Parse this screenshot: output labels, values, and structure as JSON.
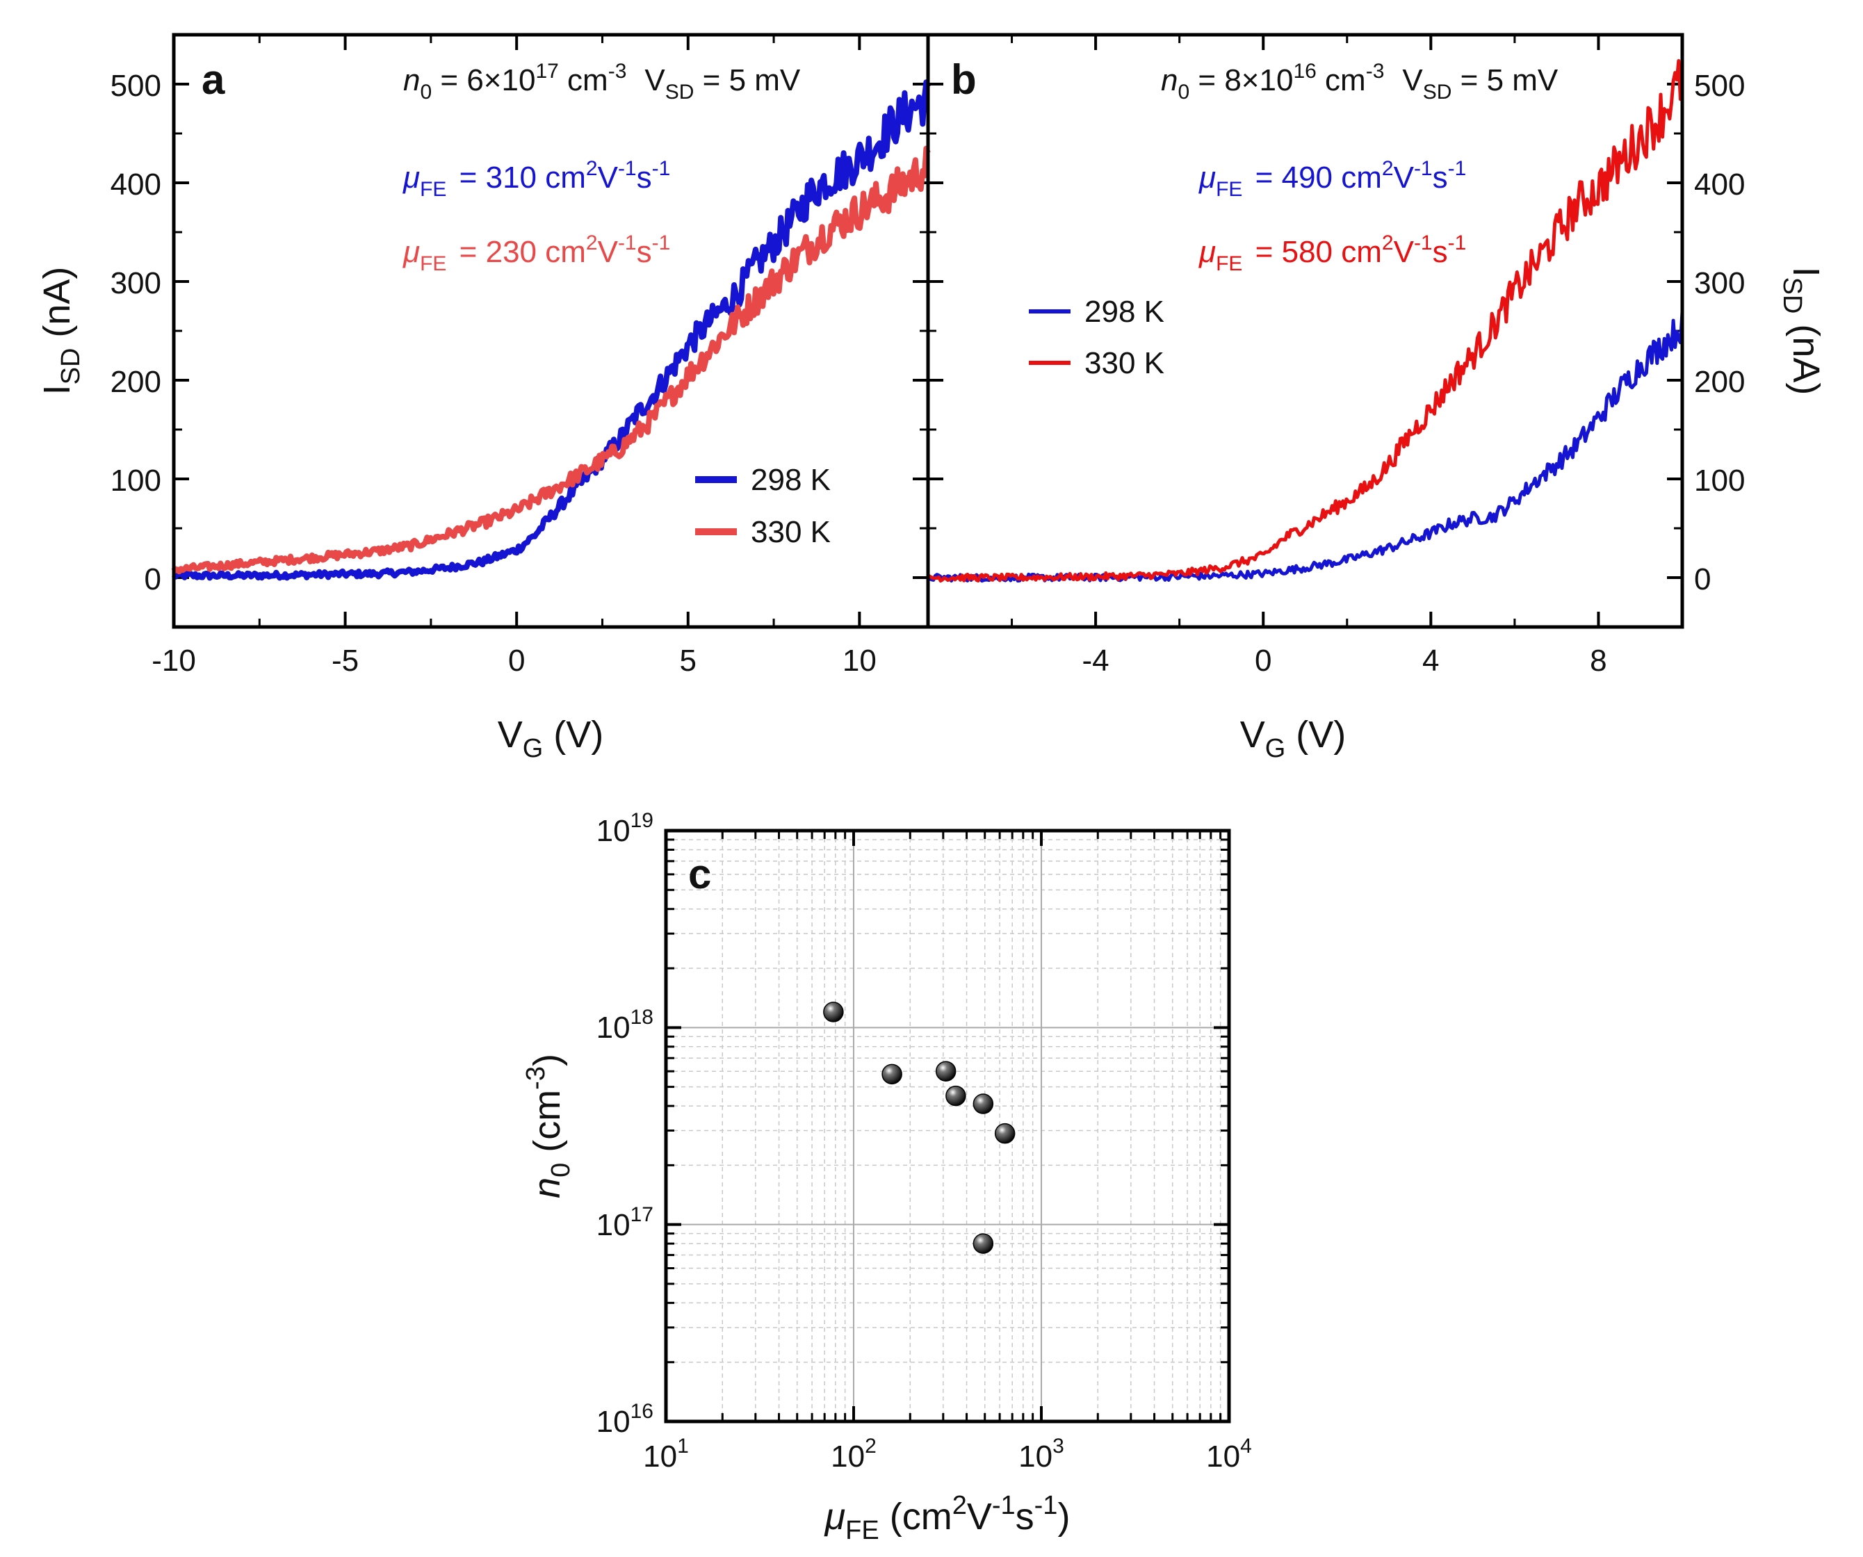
{
  "colors": {
    "blue": "#1414d2",
    "red_a": "#e84848",
    "red_b": "#e81010",
    "sphere": "#111111"
  },
  "panel_a": {
    "label": "a",
    "header": {
      "n_sym": "n",
      "n_sub": "0",
      "n_eq": " = 6×10",
      "n_exp": "17",
      "n_unit": " cm",
      "n_unit_exp": "-3",
      "v_sym": "V",
      "v_sub": "SD",
      "v_eq": " = 5 mV"
    },
    "mu_blue": {
      "sym": "μ",
      "sub": "FE",
      "value": " = 310 cm",
      "u1": "2",
      "u2": "V",
      "u3": "-1",
      "u4": "s",
      "u5": "-1"
    },
    "mu_red": {
      "sym": "μ",
      "sub": "FE",
      "value": " = 230 cm",
      "u1": "2",
      "u2": "V",
      "u3": "-1",
      "u4": "s",
      "u5": "-1"
    },
    "legend": [
      "298 K",
      "330 K"
    ],
    "x_title": {
      "sym": "V",
      "sub": "G",
      "unit": " (V)"
    },
    "y_title": {
      "sym": "I",
      "sub": "SD",
      "unit": " (nA)"
    },
    "xticks": [
      "-10",
      "-5",
      "0",
      "5",
      "10"
    ],
    "yticks": [
      "0",
      "100",
      "200",
      "300",
      "400",
      "500"
    ]
  },
  "panel_b": {
    "label": "b",
    "header": {
      "n_sym": "n",
      "n_sub": "0",
      "n_eq": " = 8×10",
      "n_exp": "16",
      "n_unit": " cm",
      "n_unit_exp": "-3",
      "v_sym": "V",
      "v_sub": "SD",
      "v_eq": " = 5 mV"
    },
    "mu_blue": {
      "sym": "μ",
      "sub": "FE",
      "value": " = 490 cm",
      "u1": "2",
      "u2": "V",
      "u3": "-1",
      "u4": "s",
      "u5": "-1"
    },
    "mu_red": {
      "sym": "μ",
      "sub": "FE",
      "value": " = 580 cm",
      "u1": "2",
      "u2": "V",
      "u3": "-1",
      "u4": "s",
      "u5": "-1"
    },
    "legend": [
      "298 K",
      "330 K"
    ],
    "x_title": {
      "sym": "V",
      "sub": "G",
      "unit": " (V)"
    },
    "y_title": {
      "sym": "I",
      "sub": "SD",
      "unit": " (nA)"
    },
    "xticks": [
      "-4",
      "0",
      "4",
      "8"
    ],
    "yticks": [
      "0",
      "100",
      "200",
      "300",
      "400",
      "500"
    ]
  },
  "panel_c": {
    "label": "c",
    "x_title": {
      "sym": "μ",
      "sub": "FE",
      "unit": " (cm",
      "u1": "2",
      "u2": "V",
      "u3": "-1",
      "u4": "s",
      "u5": "-1",
      "close": ")"
    },
    "y_title": {
      "sym": "n",
      "sub": "0",
      "unit": " (cm",
      "exp": "-3",
      "close": ")"
    },
    "xticks": [
      {
        "base": "10",
        "exp": "1"
      },
      {
        "base": "10",
        "exp": "2"
      },
      {
        "base": "10",
        "exp": "3"
      },
      {
        "base": "10",
        "exp": "4"
      }
    ],
    "yticks": [
      {
        "base": "10",
        "exp": "16"
      },
      {
        "base": "10",
        "exp": "17"
      },
      {
        "base": "10",
        "exp": "18"
      },
      {
        "base": "10",
        "exp": "19"
      }
    ]
  },
  "chart_data": [
    {
      "type": "line",
      "panel": "a",
      "xlabel": "VG (V)",
      "ylabel": "ISD (nA)",
      "xlim": [
        -10,
        12
      ],
      "ylim": [
        -50,
        550
      ],
      "series": [
        {
          "name": "298 K",
          "color": "#1414d2",
          "x": [
            -10,
            -8,
            -6,
            -4,
            -3,
            -2,
            -1,
            0,
            0.5,
            1,
            1.5,
            2,
            2.5,
            3,
            3.5,
            4,
            4.5,
            5,
            5.5,
            6,
            6.5,
            7,
            7.5,
            8,
            8.5,
            9,
            9.5,
            10,
            10.5,
            11,
            11.5,
            12
          ],
          "y": [
            2,
            2,
            3,
            4,
            6,
            10,
            16,
            28,
            42,
            62,
            82,
            100,
            120,
            140,
            165,
            185,
            210,
            235,
            255,
            272,
            292,
            318,
            338,
            360,
            385,
            402,
            412,
            425,
            440,
            460,
            475,
            485
          ]
        },
        {
          "name": "330 K",
          "color": "#e84848",
          "x": [
            -10,
            -8,
            -6,
            -4,
            -3,
            -2,
            -1,
            0,
            1,
            2,
            3,
            4,
            5,
            6,
            7,
            8,
            9,
            10,
            11,
            12
          ],
          "y": [
            8,
            14,
            20,
            27,
            33,
            44,
            55,
            68,
            88,
            108,
            130,
            162,
            205,
            245,
            282,
            318,
            350,
            372,
            392,
            418
          ]
        }
      ]
    },
    {
      "type": "line",
      "panel": "b",
      "xlabel": "VG (V)",
      "ylabel": "ISD (nA)",
      "xlim": [
        -8,
        10
      ],
      "ylim": [
        -50,
        550
      ],
      "series": [
        {
          "name": "298 K",
          "color": "#1414d2",
          "x": [
            -8,
            -6,
            -4,
            -2,
            -1,
            0,
            1,
            2,
            3,
            4,
            4.5,
            5,
            5.5,
            6,
            6.5,
            7,
            7.5,
            8,
            8.5,
            9,
            9.5,
            10
          ],
          "y": [
            0,
            0,
            0,
            1,
            2,
            4,
            10,
            18,
            30,
            45,
            55,
            60,
            62,
            78,
            98,
            115,
            135,
            162,
            190,
            215,
            235,
            255
          ]
        },
        {
          "name": "330 K",
          "color": "#e81010",
          "x": [
            -8,
            -6,
            -4,
            -3,
            -2,
            -1,
            0,
            0.5,
            1,
            1.5,
            2,
            2.5,
            3,
            3.5,
            4,
            4.5,
            5,
            5.5,
            6,
            6.5,
            7,
            7.5,
            8,
            8.5,
            9,
            9.5,
            10
          ],
          "y": [
            0,
            0,
            1,
            2,
            4,
            10,
            22,
            40,
            52,
            65,
            78,
            92,
            115,
            145,
            170,
            200,
            225,
            255,
            290,
            318,
            348,
            378,
            395,
            420,
            445,
            470,
            505
          ]
        }
      ]
    },
    {
      "type": "scatter",
      "panel": "c",
      "xscale": "log",
      "yscale": "log",
      "xlim": [
        10,
        10000
      ],
      "ylim": [
        1e+16,
        1e+19
      ],
      "xlabel": "μFE (cm2V-1s-1)",
      "ylabel": "n0 (cm-3)",
      "grid": true,
      "points": [
        {
          "x": 78,
          "y": 1.2e+18
        },
        {
          "x": 160,
          "y": 5.8e+17
        },
        {
          "x": 310,
          "y": 6e+17
        },
        {
          "x": 350,
          "y": 4.5e+17
        },
        {
          "x": 490,
          "y": 4.1e+17
        },
        {
          "x": 640,
          "y": 2.9e+17
        },
        {
          "x": 490,
          "y": 8e+16
        }
      ]
    }
  ]
}
